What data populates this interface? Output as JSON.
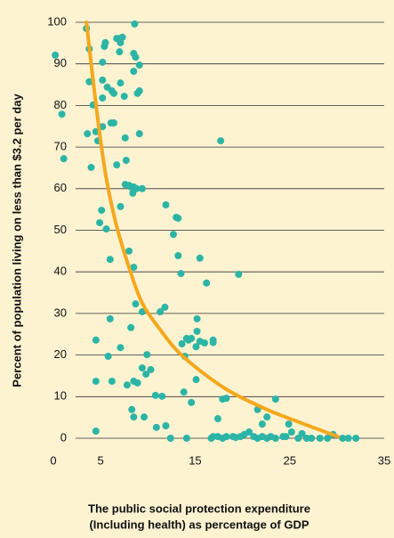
{
  "chart_data": {
    "type": "scatter",
    "ylabel": "Percent of population living on less than $3.2 per day",
    "xlabel": [
      "The public social protection expenditure",
      "(Including health) as percentage of GDP"
    ],
    "xlim": [
      0,
      35
    ],
    "ylim": [
      0,
      100
    ],
    "xticks": [
      0,
      5,
      15,
      25,
      35
    ],
    "yticks": [
      0,
      10,
      20,
      30,
      40,
      50,
      60,
      70,
      80,
      90,
      100
    ],
    "grid": true,
    "color": "#2cb5a6",
    "x": [
      0.2,
      0.9,
      1.1,
      3.5,
      3.8,
      3.8,
      4.2,
      3.6,
      4.5,
      4.0,
      4.7,
      4.9,
      5.1,
      5.2,
      5.2,
      5.2,
      5.2,
      5.4,
      5.5,
      5.7,
      6.1,
      6.2,
      6.4,
      6.4,
      6.7,
      7.0,
      6.9,
      7.1,
      7.1,
      7.3,
      7.5,
      7.6,
      7.7,
      8.0,
      8.2,
      8.5,
      8.5,
      8.6,
      8.7,
      8.9,
      9.1,
      9.1,
      8.8,
      7.1,
      6.7,
      6.0,
      5.6,
      7.6,
      8.4,
      8.5,
      9.1,
      9.4,
      8.0,
      8.5,
      8.2,
      7.1,
      6.0,
      5.8,
      6.2,
      4.5,
      4.5,
      4.5,
      8.3,
      8.5,
      8.9,
      9.4,
      7.8,
      8.5,
      9.6,
      9.8,
      8.7,
      9.4,
      9.9,
      10.3,
      10.8,
      11.5,
      11.9,
      11.9,
      10.9,
      11.3,
      11.8,
      13.0,
      13.2,
      12.7,
      13.2,
      13.5,
      13.6,
      13.9,
      13.8,
      12.4,
      14.1,
      14.6,
      15.1,
      15.2,
      15.2,
      15.5,
      14.1,
      14.3,
      15.1,
      16.0,
      14.6,
      15.5,
      16.9,
      16.9,
      16.7,
      16.9,
      17.4,
      17.9,
      18.3,
      19.0,
      17.4,
      17.9,
      18.3,
      19.3,
      19.8,
      20.2,
      20.7,
      21.2,
      21.6,
      22.1,
      22.6,
      23.0,
      23.5,
      21.6,
      22.6,
      22.1,
      23.5,
      24.3,
      24.6,
      25.2,
      24.9,
      25.9,
      26.3,
      26.8,
      27.3,
      28.2,
      29.0,
      29.6,
      30.6,
      31.2,
      32.0,
      17.7,
      19.6,
      16.2
    ],
    "values": [
      92.1,
      77.9,
      67.2,
      98.5,
      93.6,
      85.7,
      80.1,
      73.2,
      73.7,
      65.1,
      71.5,
      51.8,
      54.8,
      74.9,
      90.4,
      86.1,
      81.8,
      94.2,
      95.1,
      84.4,
      75.8,
      83.5,
      82.9,
      75.8,
      96.1,
      92.9,
      96.1,
      85.4,
      95.1,
      96.4,
      82.2,
      72.2,
      66.8,
      60.8,
      60.4,
      92.5,
      88.2,
      99.6,
      91.6,
      82.9,
      89.7,
      83.5,
      60.0,
      55.7,
      65.7,
      43.0,
      50.3,
      61.0,
      58.9,
      60.4,
      73.2,
      60.0,
      45.0,
      41.1,
      26.6,
      21.8,
      28.7,
      19.7,
      13.7,
      23.6,
      13.7,
      1.7,
      6.9,
      13.7,
      13.3,
      16.9,
      12.8,
      5.1,
      5.1,
      15.4,
      32.3,
      30.4,
      20.1,
      16.5,
      10.3,
      10.1,
      56.1,
      3.0,
      2.6,
      30.4,
      31.5,
      53.1,
      52.9,
      49.0,
      43.9,
      39.6,
      22.7,
      19.7,
      11.1,
      0,
      0,
      8.6,
      14.1,
      25.7,
      28.7,
      43.3,
      24.0,
      23.6,
      22.0,
      22.9,
      24.0,
      23.3,
      23.6,
      23.0,
      0,
      0.4,
      0.4,
      0,
      0.4,
      0.4,
      4.7,
      9.4,
      9.6,
      0.2,
      0.4,
      0.9,
      1.5,
      0.4,
      0,
      0.4,
      0,
      0.4,
      0,
      6.9,
      5.1,
      3.4,
      9.4,
      0.4,
      0.4,
      1.5,
      3.4,
      0,
      1.1,
      0,
      0,
      0,
      0,
      0.9,
      0,
      0,
      0,
      71.5,
      39.4,
      37.3
    ],
    "trend": {
      "color": "#f5a81c",
      "x": [
        3.5,
        4.2,
        4.9,
        5.6,
        6.6,
        8.0,
        9.4,
        11.3,
        13.2,
        16.0,
        18.8,
        22.6,
        26.3,
        30.1
      ],
      "values": [
        100,
        86.1,
        73.2,
        62.5,
        51.8,
        41.1,
        32.5,
        26.1,
        20.8,
        15.4,
        11.1,
        6.9,
        3.6,
        0.4
      ]
    }
  }
}
